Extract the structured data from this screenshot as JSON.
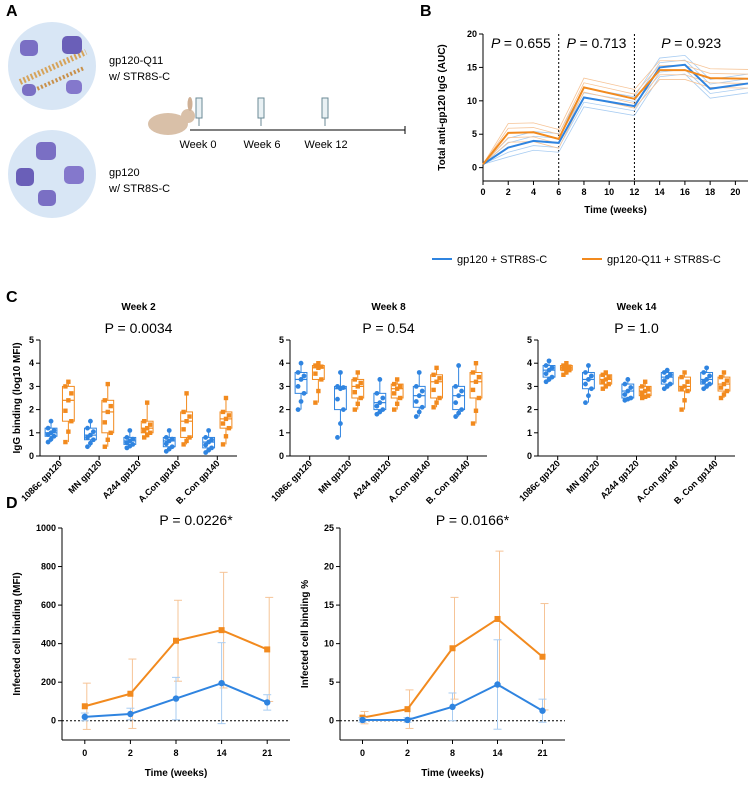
{
  "colors": {
    "blue": "#2f84e0",
    "orange": "#f28a1e",
    "lightblue": "#a9cdf2",
    "lightorange": "#f6c497"
  },
  "panelA": {
    "letter": "A",
    "group1_line1": "gp120-Q11",
    "group1_line2": "w/ STR8S-C",
    "group2_line1": "gp120",
    "group2_line2": "w/ STR8S-C",
    "timeline": [
      "Week 0",
      "Week 6",
      "Week 12"
    ]
  },
  "legend": {
    "series1": "gp120 + STR8S-C",
    "series2": "gp120-Q11 + STR8S-C"
  },
  "chart_data": [
    {
      "id": "B",
      "type": "line",
      "letter": "B",
      "ylabel": "Total anti-gp120 IgG (AUC)",
      "xlabel": "Time (weeks)",
      "ylim": [
        -2,
        20
      ],
      "xlim": [
        0,
        21
      ],
      "xticks": [
        "0",
        "2",
        "4",
        "6",
        "8",
        "10",
        "12",
        "14",
        "16",
        "18",
        "20"
      ],
      "yticks": [
        "0",
        "5",
        "10",
        "15",
        "20"
      ],
      "pvalues": [
        "0.655",
        "0.713",
        "0.923"
      ],
      "p_prefix": "P = ",
      "x": [
        0,
        2,
        4,
        6,
        8,
        12,
        14,
        16,
        18,
        21
      ],
      "series": [
        {
          "name": "gp120 + STR8S-C",
          "values": [
            0.5,
            3,
            4,
            3.7,
            10.5,
            9.2,
            15,
            15.4,
            11.8,
            12.6
          ]
        },
        {
          "name": "gp120-Q11 + STR8S-C",
          "values": [
            0.5,
            5.2,
            5.3,
            4.3,
            12,
            10.3,
            14.6,
            14.6,
            13.4,
            13.3
          ]
        }
      ]
    },
    {
      "id": "C2",
      "type": "box",
      "letter": "C",
      "title": "Week 2",
      "pvalue": "P = 0.0034",
      "ylabel": "IgG binding (log10 MFI)",
      "ylim": [
        0,
        5
      ],
      "yticks": [
        "0",
        "1",
        "2",
        "3",
        "4",
        "5"
      ],
      "categories": [
        "1086c gp120",
        "MN gp120",
        "A244 gp120",
        "A.Con gp140",
        "B. Con gp140"
      ],
      "series": [
        {
          "name": "gp120 + STR8S-C",
          "boxes": [
            [
              0.6,
              0.85,
              1.0,
              1.2,
              1.5
            ],
            [
              0.4,
              0.7,
              0.9,
              1.2,
              1.5
            ],
            [
              0.35,
              0.5,
              0.65,
              0.8,
              1.1
            ],
            [
              0.2,
              0.4,
              0.65,
              0.8,
              1.1
            ],
            [
              0.15,
              0.35,
              0.6,
              0.8,
              1.1
            ]
          ]
        },
        {
          "name": "gp120-Q11 + STR8S-C",
          "boxes": [
            [
              0.6,
              1.5,
              2.4,
              3.0,
              3.2
            ],
            [
              0.4,
              1.0,
              1.9,
              2.4,
              3.1
            ],
            [
              0.8,
              1.0,
              1.2,
              1.5,
              2.3
            ],
            [
              0.5,
              0.8,
              1.5,
              1.9,
              2.7
            ],
            [
              0.5,
              1.2,
              1.6,
              1.9,
              2.5
            ]
          ]
        }
      ]
    },
    {
      "id": "C8",
      "type": "box",
      "title": "Week 8",
      "pvalue": "P = 0.54",
      "ylim": [
        0,
        5
      ],
      "yticks": [
        "0",
        "1",
        "2",
        "3",
        "4",
        "5"
      ],
      "categories": [
        "1086c gp120",
        "MN gp120",
        "A244 gp120",
        "A.Con gp140",
        "B. Con gp140"
      ],
      "series": [
        {
          "name": "gp120 + STR8S-C",
          "boxes": [
            [
              2.0,
              2.7,
              3.3,
              3.6,
              4.0
            ],
            [
              0.8,
              2.0,
              2.9,
              3.0,
              3.6
            ],
            [
              1.8,
              2.0,
              2.3,
              2.7,
              3.3
            ],
            [
              1.7,
              2.1,
              2.6,
              3.0,
              3.6
            ],
            [
              1.7,
              2.0,
              2.6,
              3.0,
              3.9
            ]
          ]
        },
        {
          "name": "gp120-Q11 + STR8S-C",
          "boxes": [
            [
              2.3,
              3.3,
              3.8,
              3.9,
              4.0
            ],
            [
              2.0,
              2.5,
              3.0,
              3.3,
              3.6
            ],
            [
              2.0,
              2.5,
              2.9,
              3.1,
              3.3
            ],
            [
              2.1,
              2.5,
              3.2,
              3.5,
              3.8
            ],
            [
              1.4,
              2.5,
              3.2,
              3.6,
              4.0
            ]
          ]
        }
      ]
    },
    {
      "id": "C14",
      "type": "box",
      "title": "Week 14",
      "pvalue": "P = 1.0",
      "ylim": [
        0,
        5
      ],
      "yticks": [
        "0",
        "1",
        "2",
        "3",
        "4",
        "5"
      ],
      "categories": [
        "1086c gp120",
        "MN gp120",
        "A244 gp120",
        "A.Con gp140",
        "B. Con gp140"
      ],
      "series": [
        {
          "name": "gp120 + STR8S-C",
          "boxes": [
            [
              3.2,
              3.4,
              3.7,
              3.9,
              4.1
            ],
            [
              2.3,
              2.9,
              3.3,
              3.6,
              3.9
            ],
            [
              2.4,
              2.5,
              2.8,
              3.1,
              3.3
            ],
            [
              2.9,
              3.1,
              3.4,
              3.6,
              3.7
            ],
            [
              2.9,
              3.1,
              3.3,
              3.6,
              3.8
            ]
          ]
        },
        {
          "name": "gp120-Q11 + STR8S-C",
          "boxes": [
            [
              3.5,
              3.7,
              3.8,
              3.9,
              4.0
            ],
            [
              2.9,
              3.1,
              3.3,
              3.5,
              3.6
            ],
            [
              2.5,
              2.6,
              2.8,
              3.0,
              3.2
            ],
            [
              2.0,
              2.8,
              3.0,
              3.4,
              3.6
            ],
            [
              2.5,
              2.8,
              3.1,
              3.4,
              3.6
            ]
          ]
        }
      ]
    },
    {
      "id": "D1",
      "type": "line",
      "letter": "D",
      "pvalue": "P = 0.0226*",
      "ylabel": "Infected cell binding (MFI)",
      "xlabel": "Time (weeks)",
      "ylim": [
        -100,
        1000
      ],
      "yticks": [
        "0",
        "200",
        "400",
        "600",
        "800",
        "1000"
      ],
      "categories": [
        "0",
        "2",
        "8",
        "14",
        "21"
      ],
      "series": [
        {
          "name": "gp120 + STR8S-C",
          "values": [
            20,
            35,
            115,
            195,
            95
          ],
          "err": [
            20,
            30,
            110,
            210,
            40
          ]
        },
        {
          "name": "gp120-Q11 + STR8S-C",
          "values": [
            75,
            140,
            415,
            470,
            370
          ],
          "err": [
            120,
            180,
            210,
            300,
            270
          ]
        }
      ]
    },
    {
      "id": "D2",
      "type": "line",
      "pvalue": "P = 0.0166*",
      "ylabel": "Infected cell binding %",
      "xlabel": "Time (weeks)",
      "ylim": [
        -2.5,
        25
      ],
      "yticks": [
        "0",
        "5",
        "10",
        "15",
        "20",
        "25"
      ],
      "categories": [
        "0",
        "2",
        "8",
        "14",
        "21"
      ],
      "series": [
        {
          "name": "gp120 + STR8S-C",
          "values": [
            0.1,
            0.1,
            1.8,
            4.7,
            1.3
          ],
          "err": [
            0.3,
            0.3,
            1.8,
            5.8,
            1.5
          ]
        },
        {
          "name": "gp120-Q11 + STR8S-C",
          "values": [
            0.4,
            1.5,
            9.4,
            13.2,
            8.3
          ],
          "err": [
            0.8,
            2.5,
            6.6,
            8.8,
            6.9
          ]
        }
      ]
    }
  ]
}
